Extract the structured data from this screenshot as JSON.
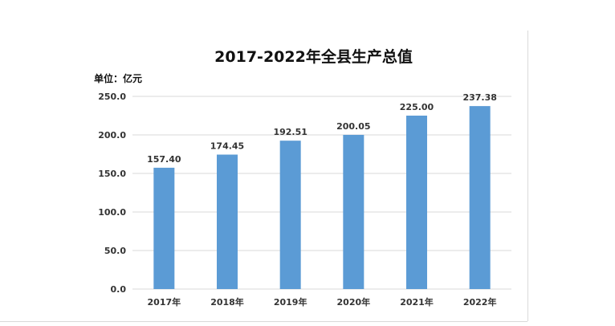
{
  "unit_label": "单位：亿元",
  "chart_data": {
    "type": "bar",
    "title": "2017-2022年全县生产总值",
    "categories": [
      "2017年",
      "2018年",
      "2019年",
      "2020年",
      "2021年",
      "2022年"
    ],
    "values": [
      157.4,
      174.45,
      192.51,
      200.05,
      225.0,
      237.38
    ],
    "data_labels": [
      "157.40",
      "174.45",
      "192.51",
      "200.05",
      "225.00",
      "237.38"
    ],
    "y_ticks": [
      "0.0",
      "50.0",
      "100.0",
      "150.0",
      "200.0",
      "250.0"
    ],
    "ylim": [
      0,
      250
    ],
    "grid": true,
    "legend": "none",
    "bar_color": "#5b9bd5",
    "gridline_color": "#d9d9d9"
  }
}
